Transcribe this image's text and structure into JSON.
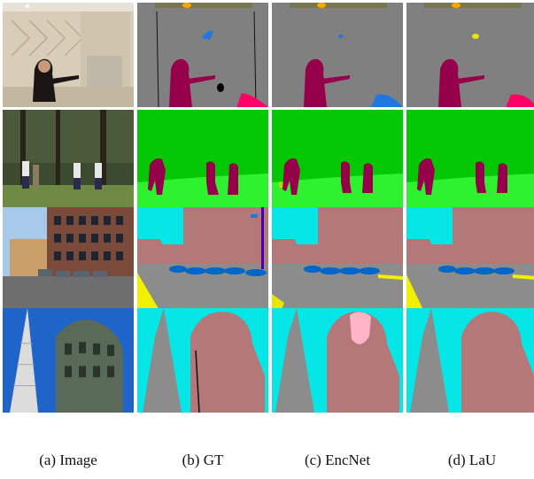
{
  "figure": {
    "columns": [
      {
        "id": "image",
        "caption": "(a) Image"
      },
      {
        "id": "gt",
        "caption": "(b) GT"
      },
      {
        "id": "encnet",
        "caption": "(c) EncNet"
      },
      {
        "id": "lau",
        "caption": "(d) LaU"
      }
    ],
    "rows": [
      {
        "id": "bathroom"
      },
      {
        "id": "golf"
      },
      {
        "id": "street"
      },
      {
        "id": "towers"
      }
    ],
    "palette": {
      "wall": "#808080",
      "person": "#96004b",
      "grass": "#04c804",
      "field": "#2ef22e",
      "sky": "#06e6e6",
      "building": "#b47878",
      "road": "#8c8c8c",
      "car": "#0066c8",
      "sidewalk": "#f0f000",
      "ceiling": "#787850",
      "lamp": "#ffa500",
      "towel": "#ff0066",
      "pink": "#ffb4c8"
    }
  }
}
